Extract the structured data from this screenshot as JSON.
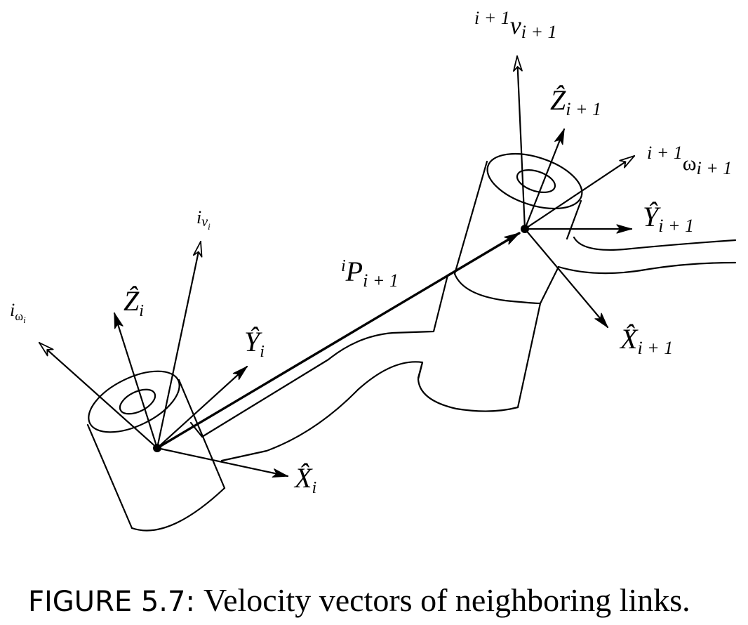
{
  "figure": {
    "caption_label": "FIGURE 5.7:",
    "caption_text": "Velocity vectors of neighboring links."
  },
  "labels": {
    "v_i": {
      "sup": "i",
      "base": "ν",
      "sub": "i"
    },
    "omega_i": {
      "sup": "i",
      "base": "ω",
      "sub": "i"
    },
    "Z_i": {
      "base": "Ẑ",
      "sub": "i"
    },
    "Y_i": {
      "base": "Ŷ",
      "sub": "i"
    },
    "X_i": {
      "base": "X̂",
      "sub": "i"
    },
    "P": {
      "sup": "i",
      "base": "P",
      "sub": "i + 1"
    },
    "v_i1": {
      "sup": "i + 1",
      "base": "ν",
      "sub": "i + 1"
    },
    "Z_i1": {
      "base": "Ẑ",
      "sub": "i + 1"
    },
    "omega_i1": {
      "sup": "i + 1",
      "base": "ω",
      "sub": "i + 1"
    },
    "Y_i1": {
      "base": "Ŷ",
      "sub": "i + 1"
    },
    "X_i1": {
      "base": "X̂",
      "sub": "i + 1"
    }
  }
}
